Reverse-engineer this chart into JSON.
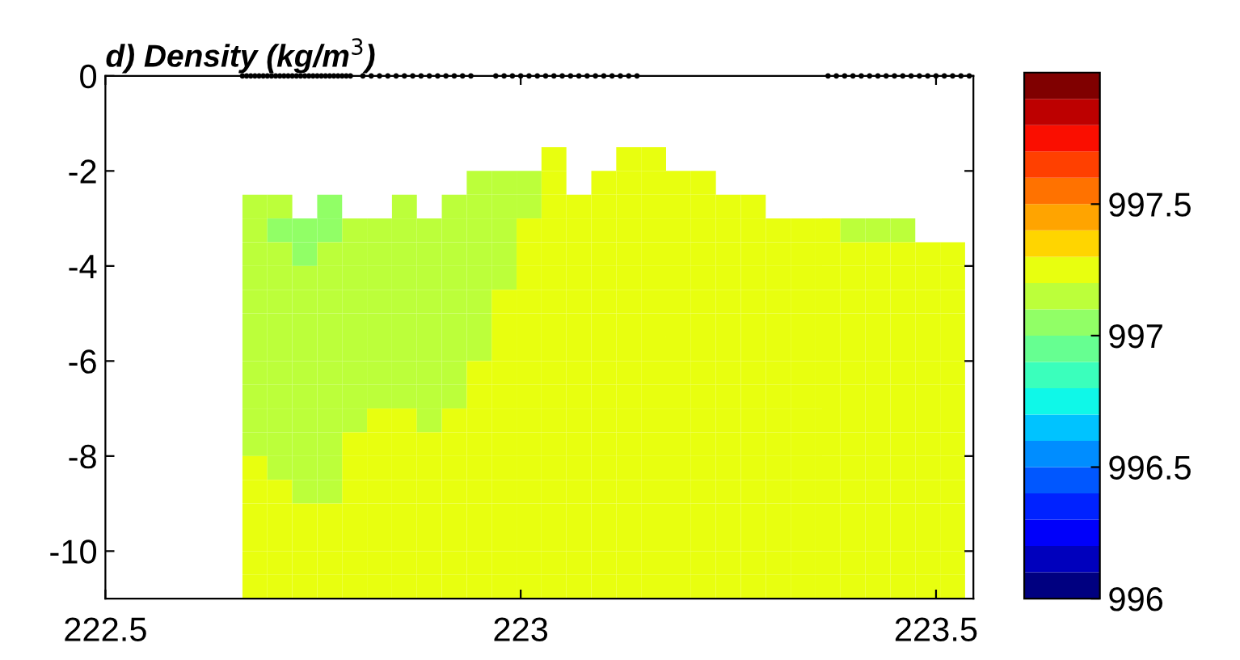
{
  "chart_data": {
    "type": "heatmap",
    "title": "d) Density (kg/m$^{3}$)",
    "x": [
      222.68,
      222.71,
      222.74,
      222.77,
      222.8,
      222.83,
      222.86,
      222.89,
      222.92,
      222.95,
      222.98,
      223.01,
      223.04,
      223.07,
      223.1,
      223.13,
      223.16,
      223.19,
      223.22,
      223.25,
      223.28,
      223.31,
      223.34,
      223.37,
      223.4,
      223.43,
      223.46,
      223.49,
      223.52
    ],
    "y": [
      -1.75,
      -2.25,
      -2.75,
      -3.25,
      -3.75,
      -4.25,
      -4.75,
      -5.25,
      -5.75,
      -6.25,
      -6.75,
      -7.25,
      -7.75,
      -8.25,
      -8.75,
      -9.25,
      -9.75,
      -10.25,
      -10.75
    ],
    "cells": [
      [
        null,
        null,
        null,
        null,
        null,
        null,
        null,
        null,
        null,
        null,
        null,
        null,
        997.25,
        null,
        null,
        997.25,
        997.25,
        null,
        null,
        null,
        null,
        null,
        null,
        null,
        null,
        null,
        null,
        null,
        null
      ],
      [
        null,
        null,
        null,
        null,
        null,
        null,
        null,
        null,
        null,
        997.15,
        997.15,
        997.15,
        997.25,
        null,
        997.25,
        997.25,
        997.25,
        997.25,
        997.25,
        null,
        null,
        null,
        null,
        null,
        null,
        null,
        null,
        null,
        null
      ],
      [
        997.15,
        997.15,
        null,
        997.05,
        null,
        null,
        997.15,
        null,
        997.15,
        997.15,
        997.15,
        997.15,
        997.25,
        997.25,
        997.25,
        997.25,
        997.25,
        997.25,
        997.25,
        997.25,
        997.25,
        null,
        null,
        null,
        null,
        null,
        null,
        null,
        null
      ],
      [
        997.15,
        997.05,
        997.05,
        997.05,
        997.15,
        997.15,
        997.15,
        997.15,
        997.15,
        997.15,
        997.15,
        997.25,
        997.25,
        997.25,
        997.25,
        997.25,
        997.25,
        997.25,
        997.25,
        997.25,
        997.25,
        997.25,
        997.25,
        997.25,
        997.15,
        997.15,
        997.15,
        null,
        null
      ],
      [
        997.15,
        997.15,
        997.05,
        997.15,
        997.15,
        997.15,
        997.15,
        997.15,
        997.15,
        997.15,
        997.15,
        997.25,
        997.25,
        997.25,
        997.25,
        997.25,
        997.25,
        997.25,
        997.25,
        997.25,
        997.25,
        997.25,
        997.25,
        997.25,
        997.25,
        997.25,
        997.25,
        997.25,
        997.25
      ],
      [
        997.15,
        997.15,
        997.15,
        997.15,
        997.15,
        997.15,
        997.15,
        997.15,
        997.15,
        997.15,
        997.15,
        997.25,
        997.25,
        997.25,
        997.25,
        997.25,
        997.25,
        997.25,
        997.25,
        997.25,
        997.25,
        997.25,
        997.25,
        997.25,
        997.25,
        997.25,
        997.25,
        997.25,
        997.25
      ],
      [
        997.15,
        997.15,
        997.15,
        997.15,
        997.15,
        997.15,
        997.15,
        997.15,
        997.15,
        997.15,
        997.25,
        997.25,
        997.25,
        997.25,
        997.25,
        997.25,
        997.25,
        997.25,
        997.25,
        997.25,
        997.25,
        997.25,
        997.25,
        997.25,
        997.25,
        997.25,
        997.25,
        997.25,
        997.25
      ],
      [
        997.15,
        997.15,
        997.15,
        997.15,
        997.15,
        997.15,
        997.15,
        997.15,
        997.15,
        997.15,
        997.25,
        997.25,
        997.25,
        997.25,
        997.25,
        997.25,
        997.25,
        997.25,
        997.25,
        997.25,
        997.25,
        997.25,
        997.25,
        997.25,
        997.25,
        997.25,
        997.25,
        997.25,
        997.25
      ],
      [
        997.15,
        997.15,
        997.15,
        997.15,
        997.15,
        997.15,
        997.15,
        997.15,
        997.15,
        997.15,
        997.25,
        997.25,
        997.25,
        997.25,
        997.25,
        997.25,
        997.25,
        997.25,
        997.25,
        997.25,
        997.25,
        997.25,
        997.25,
        997.25,
        997.25,
        997.25,
        997.25,
        997.25,
        997.25
      ],
      [
        997.15,
        997.15,
        997.15,
        997.15,
        997.15,
        997.15,
        997.15,
        997.15,
        997.15,
        997.25,
        997.25,
        997.25,
        997.25,
        997.25,
        997.25,
        997.25,
        997.25,
        997.25,
        997.25,
        997.25,
        997.25,
        997.25,
        997.25,
        997.25,
        997.25,
        997.25,
        997.25,
        997.25,
        997.25
      ],
      [
        997.15,
        997.15,
        997.15,
        997.15,
        997.15,
        997.15,
        997.15,
        997.15,
        997.15,
        997.25,
        997.25,
        997.25,
        997.25,
        997.25,
        997.25,
        997.25,
        997.25,
        997.25,
        997.25,
        997.25,
        997.25,
        997.25,
        997.25,
        997.25,
        997.25,
        997.25,
        997.25,
        997.25,
        997.25
      ],
      [
        997.15,
        997.15,
        997.15,
        997.15,
        997.15,
        997.25,
        997.25,
        997.15,
        997.25,
        997.25,
        997.25,
        997.25,
        997.25,
        997.25,
        997.25,
        997.25,
        997.25,
        997.25,
        997.25,
        997.25,
        997.25,
        997.25,
        997.25,
        997.25,
        997.25,
        997.25,
        997.25,
        997.25,
        997.25
      ],
      [
        997.15,
        997.15,
        997.15,
        997.15,
        997.25,
        997.25,
        997.25,
        997.25,
        997.25,
        997.25,
        997.25,
        997.25,
        997.25,
        997.25,
        997.25,
        997.25,
        997.25,
        997.25,
        997.25,
        997.25,
        997.25,
        997.25,
        997.25,
        997.25,
        997.25,
        997.25,
        997.25,
        997.25,
        997.25
      ],
      [
        997.25,
        997.15,
        997.15,
        997.15,
        997.25,
        997.25,
        997.25,
        997.25,
        997.25,
        997.25,
        997.25,
        997.25,
        997.25,
        997.25,
        997.25,
        997.25,
        997.25,
        997.25,
        997.25,
        997.25,
        997.25,
        997.25,
        997.25,
        997.25,
        997.25,
        997.25,
        997.25,
        997.25,
        997.25
      ],
      [
        997.25,
        997.25,
        997.15,
        997.15,
        997.25,
        997.25,
        997.25,
        997.25,
        997.25,
        997.25,
        997.25,
        997.25,
        997.25,
        997.25,
        997.25,
        997.25,
        997.25,
        997.25,
        997.25,
        997.25,
        997.25,
        997.25,
        997.25,
        997.25,
        997.25,
        997.25,
        997.25,
        997.25,
        997.25
      ],
      [
        997.25,
        997.25,
        997.25,
        997.25,
        997.25,
        997.25,
        997.25,
        997.25,
        997.25,
        997.25,
        997.25,
        997.25,
        997.25,
        997.25,
        997.25,
        997.25,
        997.25,
        997.25,
        997.25,
        997.25,
        997.25,
        997.25,
        997.25,
        997.25,
        997.25,
        997.25,
        997.25,
        997.25,
        997.25
      ],
      [
        997.25,
        997.25,
        997.25,
        997.25,
        997.25,
        997.25,
        997.25,
        997.25,
        997.25,
        997.25,
        997.25,
        997.25,
        997.25,
        997.25,
        997.25,
        997.25,
        997.25,
        997.25,
        997.25,
        997.25,
        997.25,
        997.25,
        997.25,
        997.25,
        997.25,
        997.25,
        997.25,
        997.25,
        997.25
      ],
      [
        997.25,
        997.25,
        997.25,
        997.25,
        997.25,
        997.25,
        997.25,
        997.25,
        997.25,
        997.25,
        997.25,
        997.25,
        997.25,
        997.25,
        997.25,
        997.25,
        997.25,
        997.25,
        997.25,
        997.25,
        997.25,
        997.25,
        997.25,
        997.25,
        997.25,
        997.25,
        997.25,
        997.25,
        997.25
      ],
      [
        997.25,
        997.25,
        997.25,
        997.25,
        997.25,
        997.25,
        997.25,
        997.25,
        997.25,
        997.25,
        997.25,
        997.25,
        997.25,
        997.25,
        997.25,
        997.25,
        997.25,
        997.25,
        997.25,
        997.25,
        997.25,
        997.25,
        997.25,
        997.25,
        997.25,
        997.25,
        997.25,
        997.25,
        997.25
      ]
    ],
    "clim": [
      996,
      998
    ],
    "cticks": [
      996,
      996.5,
      997,
      997.5
    ],
    "xlim": [
      222.5,
      223.545
    ],
    "xticks": [
      222.5,
      223,
      223.5
    ],
    "ylim": [
      -11,
      0
    ],
    "yticks": [
      0,
      -2,
      -4,
      -6,
      -8,
      -10
    ],
    "series": [
      {
        "type": "scatter",
        "color": "#000000",
        "marker": "circle",
        "x": [
          222.665,
          222.67,
          222.675,
          222.68,
          222.685,
          222.69,
          222.695,
          222.7,
          222.705,
          222.71,
          222.715,
          222.72,
          222.725,
          222.73,
          222.735,
          222.74,
          222.745,
          222.75,
          222.755,
          222.76,
          222.765,
          222.77,
          222.775,
          222.78,
          222.785,
          222.79,
          222.795,
          222.81,
          222.82,
          222.83,
          222.84,
          222.85,
          222.86,
          222.87,
          222.88,
          222.89,
          222.9,
          222.91,
          222.92,
          222.93,
          222.94,
          222.97,
          222.98,
          222.99,
          223.0,
          223.01,
          223.02,
          223.03,
          223.04,
          223.05,
          223.06,
          223.07,
          223.08,
          223.09,
          223.1,
          223.11,
          223.12,
          223.13,
          223.14,
          223.37,
          223.38,
          223.39,
          223.4,
          223.41,
          223.42,
          223.43,
          223.44,
          223.45,
          223.46,
          223.47,
          223.48,
          223.49,
          223.5,
          223.51,
          223.52,
          223.53,
          223.54
        ],
        "values": [
          0,
          0,
          0,
          0,
          0,
          0,
          0,
          0,
          0,
          0,
          0,
          0,
          0,
          0,
          0,
          0,
          0,
          0,
          0,
          0,
          0,
          0,
          0,
          0,
          0,
          0,
          0,
          0,
          0,
          0,
          0,
          0,
          0,
          0,
          0,
          0,
          0,
          0,
          0,
          0,
          0,
          0,
          0,
          0,
          0,
          0,
          0,
          0,
          0,
          0,
          0,
          0,
          0,
          0,
          0,
          0,
          0,
          0,
          0,
          0,
          0,
          0,
          0,
          0,
          0,
          0,
          0,
          0,
          0,
          0,
          0,
          0,
          0,
          0,
          0,
          0,
          0
        ]
      }
    ]
  }
}
